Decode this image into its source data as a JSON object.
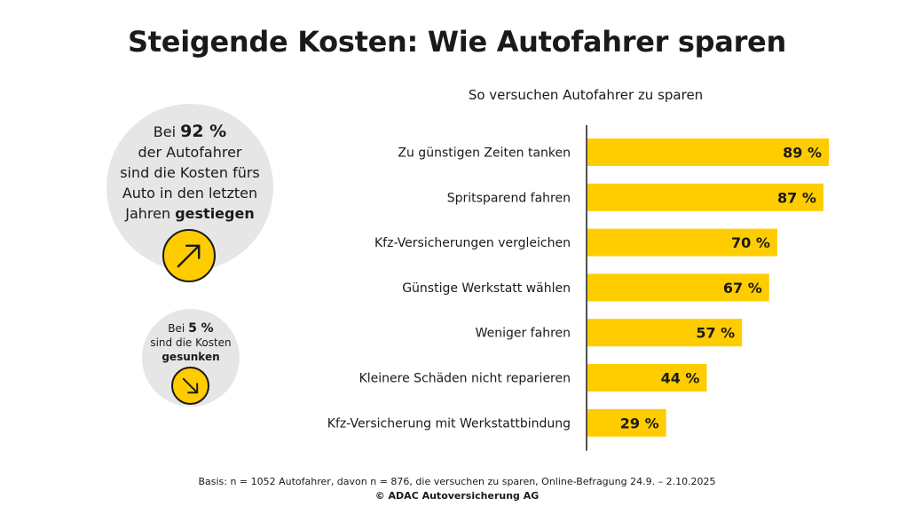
{
  "title": "Steigende Kosten: Wie Autofahrer sparen",
  "side_info": {
    "increase": {
      "line1_pre": "Bei",
      "percent": "92 %",
      "line2": "der Autofahrer",
      "line3": "sind die Kosten fürs",
      "line4": "Auto in den letzten",
      "line5_pre": "Jahren",
      "line5_bold": "gestiegen",
      "icon": "arrow-up-right-icon"
    },
    "decrease": {
      "line1_pre": "Bei",
      "percent": "5 %",
      "line2": "sind die Kosten",
      "line3_bold": "gesunken",
      "icon": "arrow-down-right-icon"
    }
  },
  "chart_data": {
    "type": "bar",
    "orientation": "horizontal",
    "title": "So versuchen Autofahrer zu sparen",
    "categories": [
      "Zu günstigen Zeiten tanken",
      "Spritsparend fahren",
      "Kfz-Versicherungen vergleichen",
      "Günstige Werkstatt wählen",
      "Weniger fahren",
      "Kleinere Schäden nicht reparieren",
      "Kfz-Versicherung mit Werkstattbindung"
    ],
    "values": [
      89,
      87,
      70,
      67,
      57,
      44,
      29
    ],
    "value_labels": [
      "89 %",
      "87 %",
      "70 %",
      "67 %",
      "57 %",
      "44 %",
      "29 %"
    ],
    "xlim": [
      0,
      100
    ],
    "grid": false,
    "bar_color": "#ffcc00"
  },
  "footnote": {
    "basis": "Basis: n = 1052 Autofahrer, davon n = 876, die versuchen zu sparen, Online-Befragung 24.9. – 2.10.2025",
    "copyright": "© ADAC Autoversicherung AG"
  },
  "colors": {
    "accent": "#ffcc00",
    "circle_bg": "#e6e6e6",
    "text": "#1a1a1a"
  }
}
